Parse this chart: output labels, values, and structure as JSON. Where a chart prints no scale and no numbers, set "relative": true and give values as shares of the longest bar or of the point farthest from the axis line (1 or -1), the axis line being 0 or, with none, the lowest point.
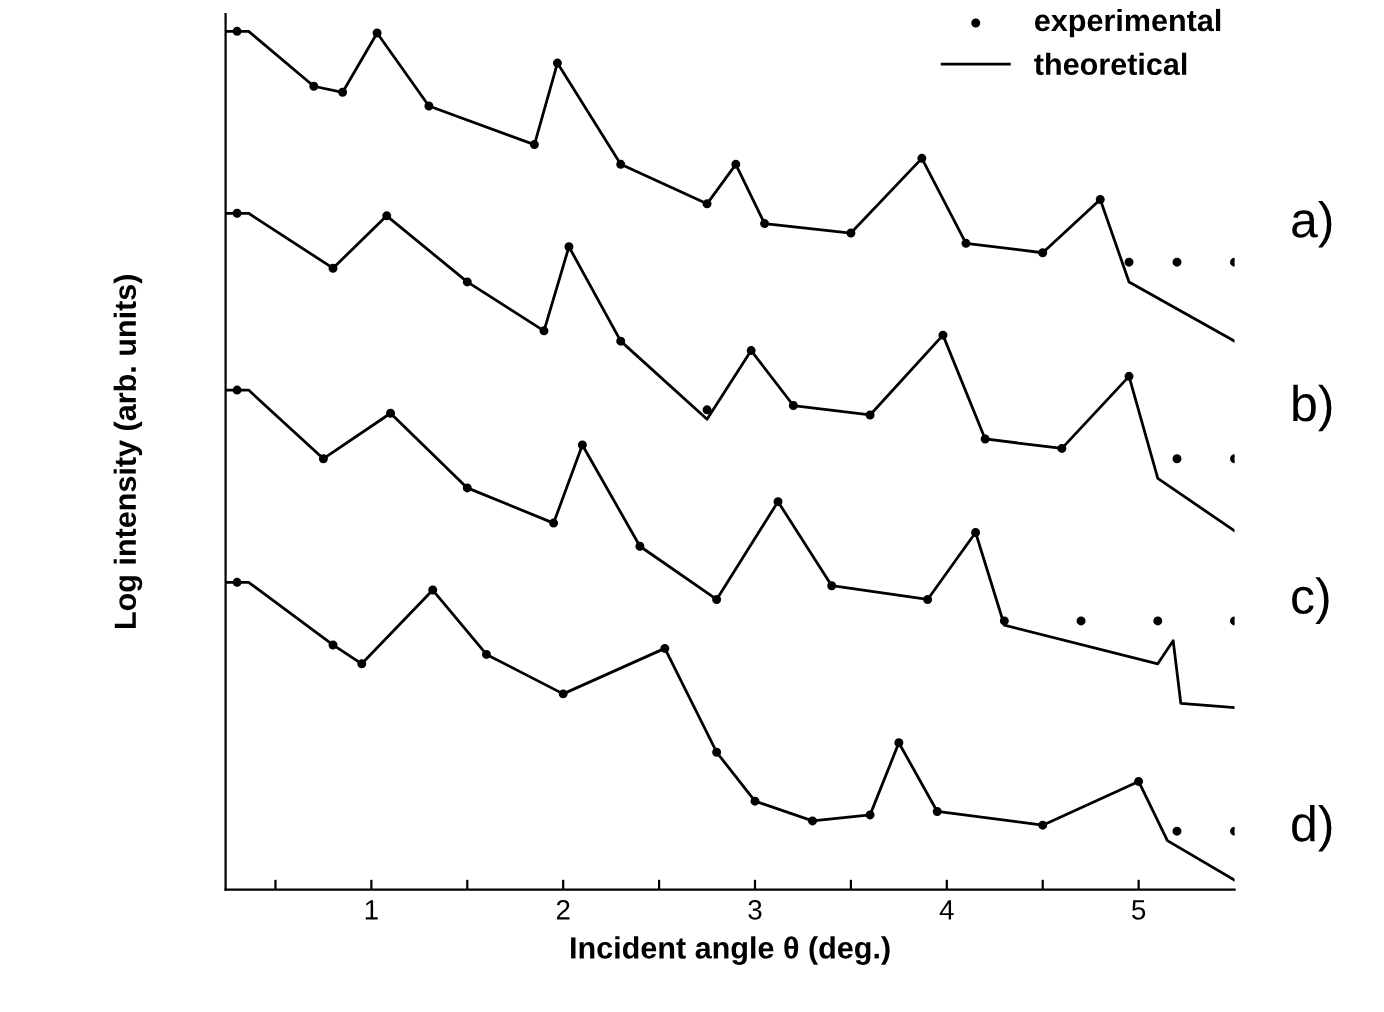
{
  "chart_data": {
    "type": "line",
    "relative": true,
    "xlabel": "Incident angle θ (deg.)",
    "ylabel": "Log intensity (arb. units)",
    "xlim": [
      0.24,
      5.5
    ],
    "xticks": [
      {
        "value": 0.5,
        "label": null
      },
      1,
      {
        "value": 1.5,
        "label": null
      },
      2,
      {
        "value": 2.5,
        "label": null
      },
      3,
      {
        "value": 3.5,
        "label": null
      },
      4,
      {
        "value": 4.5,
        "label": null
      },
      5
    ],
    "legend": "top right",
    "grid": false,
    "annotations": [
      "a)",
      "b)",
      "c)",
      "d)"
    ],
    "series": [
      {
        "name": "experimental",
        "type": "scatter",
        "color": "#000000",
        "x": [
          0.3,
          0.7,
          0.85,
          1.03,
          1.3,
          1.85,
          1.97,
          2.3,
          2.75,
          2.9,
          3.05,
          3.5,
          3.87,
          4.1,
          4.5,
          4.8,
          4.95,
          5.2,
          5.5
        ],
        "values": [
          1.0,
          0.936,
          0.929,
          0.998,
          0.913,
          0.868,
          0.963,
          0.845,
          0.799,
          0.845,
          0.776,
          0.765,
          0.852,
          0.753,
          0.742,
          0.804,
          0.731,
          0.731,
          0.731
        ]
      },
      {
        "name": "theoretical",
        "color": "#000000",
        "x": [
          0.24,
          0.36,
          0.7,
          0.85,
          1.03,
          1.3,
          1.85,
          1.97,
          2.3,
          2.75,
          2.9,
          3.05,
          3.5,
          3.87,
          4.1,
          4.5,
          4.8,
          4.95,
          5.5
        ],
        "values": [
          1.0,
          1.0,
          0.936,
          0.929,
          0.998,
          0.913,
          0.868,
          0.963,
          0.845,
          0.799,
          0.845,
          0.776,
          0.765,
          0.852,
          0.753,
          0.742,
          0.804,
          0.708,
          0.639
        ]
      },
      {
        "color": "#000000",
        "x": [
          0.24,
          0.36,
          0.8,
          1.08,
          1.5,
          1.9,
          2.03,
          2.3,
          2.75,
          2.98,
          3.2,
          3.6,
          3.98,
          4.2,
          4.6,
          4.95,
          5.1,
          5.5
        ],
        "values": [
          0.788,
          0.788,
          0.724,
          0.785,
          0.708,
          0.651,
          0.749,
          0.639,
          0.548,
          0.628,
          0.564,
          0.553,
          0.646,
          0.525,
          0.514,
          0.598,
          0.479,
          0.418
        ]
      },
      {
        "type": "scatter",
        "color": "#000000",
        "x": [
          0.3,
          0.8,
          1.08,
          1.5,
          1.9,
          2.03,
          2.3,
          2.75,
          2.98,
          3.2,
          3.6,
          3.98,
          4.2,
          4.6,
          4.95,
          5.2,
          5.5
        ],
        "values": [
          0.788,
          0.724,
          0.785,
          0.708,
          0.651,
          0.749,
          0.639,
          0.559,
          0.628,
          0.564,
          0.553,
          0.646,
          0.525,
          0.514,
          0.598,
          0.502,
          0.502
        ]
      },
      {
        "color": "#000000",
        "x": [
          0.24,
          0.36,
          0.75,
          1.1,
          1.5,
          1.95,
          2.1,
          2.4,
          2.8,
          3.12,
          3.4,
          3.9,
          4.15,
          4.3,
          5.1,
          5.18,
          5.22,
          5.5
        ],
        "values": [
          0.582,
          0.582,
          0.502,
          0.555,
          0.468,
          0.427,
          0.518,
          0.4,
          0.338,
          0.452,
          0.354,
          0.338,
          0.416,
          0.308,
          0.263,
          0.29,
          0.217,
          0.212
        ]
      },
      {
        "type": "scatter",
        "color": "#000000",
        "x": [
          0.3,
          0.75,
          1.1,
          1.5,
          1.95,
          2.1,
          2.4,
          2.8,
          3.12,
          3.4,
          3.9,
          4.15,
          4.3,
          4.7,
          5.1,
          5.5
        ],
        "values": [
          0.582,
          0.502,
          0.555,
          0.468,
          0.427,
          0.518,
          0.4,
          0.338,
          0.452,
          0.354,
          0.338,
          0.416,
          0.313,
          0.313,
          0.313,
          0.313
        ]
      },
      {
        "color": "#000000",
        "x": [
          0.24,
          0.36,
          0.8,
          0.95,
          1.32,
          1.6,
          2.0,
          2.53,
          2.8,
          3.0,
          3.3,
          3.6,
          3.75,
          3.95,
          4.5,
          5.0,
          5.15,
          5.5
        ],
        "values": [
          0.358,
          0.358,
          0.285,
          0.263,
          0.349,
          0.274,
          0.228,
          0.281,
          0.16,
          0.103,
          0.08,
          0.087,
          0.171,
          0.091,
          0.075,
          0.126,
          0.057,
          0.011
        ]
      },
      {
        "type": "scatter",
        "color": "#000000",
        "x": [
          0.3,
          0.8,
          0.95,
          1.32,
          1.6,
          2.0,
          2.53,
          2.8,
          3.0,
          3.3,
          3.6,
          3.75,
          3.95,
          4.5,
          5.0,
          5.2,
          5.5
        ],
        "values": [
          0.358,
          0.285,
          0.263,
          0.349,
          0.274,
          0.228,
          0.281,
          0.16,
          0.103,
          0.08,
          0.087,
          0.171,
          0.091,
          0.075,
          0.126,
          0.068,
          0.068
        ]
      }
    ]
  }
}
